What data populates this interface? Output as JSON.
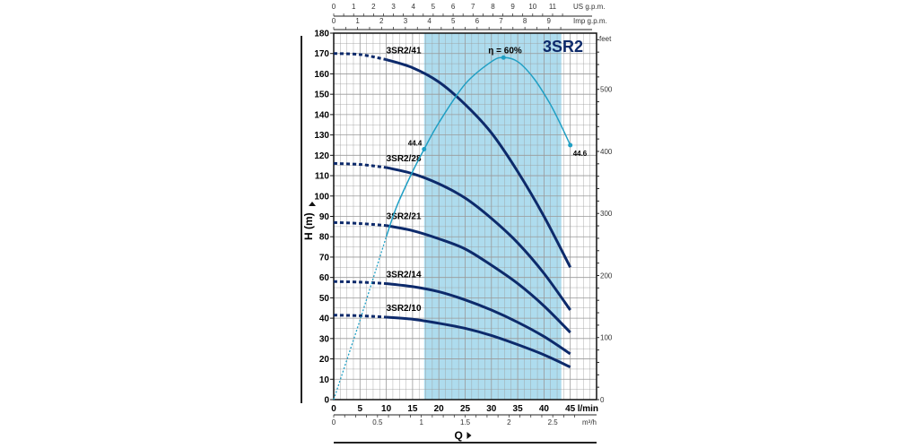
{
  "chart_data": {
    "type": "line",
    "title": "3SR2",
    "xlabel": "Q",
    "ylabel": "H (m)",
    "x_unit": "l/min",
    "xlim": [
      0,
      50
    ],
    "ylim": [
      0,
      180
    ],
    "x_ticks": [
      0,
      5,
      10,
      15,
      20,
      25,
      30,
      35,
      40,
      45
    ],
    "y_ticks": [
      0,
      10,
      20,
      30,
      40,
      50,
      60,
      70,
      80,
      90,
      100,
      110,
      120,
      130,
      140,
      150,
      160,
      170,
      180
    ],
    "secondary_axes": {
      "right": {
        "label": "feet",
        "ticks": [
          0,
          100,
          200,
          300,
          400,
          500
        ]
      },
      "top_us": {
        "label": "US g.p.m.",
        "ticks": [
          0,
          1,
          2,
          3,
          4,
          5,
          6,
          7,
          8,
          9,
          10,
          11
        ]
      },
      "top_imp": {
        "label": "Imp g.p.m.",
        "ticks": [
          0,
          1,
          2,
          3,
          4,
          5,
          6,
          7,
          8,
          9
        ]
      },
      "bottom_m3h": {
        "label": "m³/h",
        "ticks": [
          0,
          0.5,
          1,
          1.5,
          2,
          2.5
        ]
      }
    },
    "recommended_range": [
      17.2,
      43.3
    ],
    "grid": true,
    "colors": {
      "curves": "#0d2a6b",
      "efficiency": "#1f9fc4",
      "band": "#aedcee",
      "grid": "#999999"
    },
    "series": [
      {
        "name": "3SR2/41",
        "dashed_until": 10,
        "points": [
          [
            0,
            170
          ],
          [
            5,
            169.5
          ],
          [
            10,
            167
          ],
          [
            15,
            163
          ],
          [
            20,
            156
          ],
          [
            25,
            145
          ],
          [
            30,
            131
          ],
          [
            35,
            112
          ],
          [
            40,
            90
          ],
          [
            45,
            65
          ]
        ]
      },
      {
        "name": "3SR2/28",
        "dashed_until": 10,
        "points": [
          [
            0,
            116
          ],
          [
            5,
            115.5
          ],
          [
            10,
            114
          ],
          [
            15,
            111
          ],
          [
            20,
            106
          ],
          [
            25,
            99
          ],
          [
            30,
            89
          ],
          [
            35,
            77
          ],
          [
            40,
            62
          ],
          [
            45,
            44
          ]
        ]
      },
      {
        "name": "3SR2/21",
        "dashed_until": 10,
        "points": [
          [
            0,
            87
          ],
          [
            5,
            86.5
          ],
          [
            10,
            85.5
          ],
          [
            15,
            83
          ],
          [
            20,
            79
          ],
          [
            25,
            74
          ],
          [
            30,
            66
          ],
          [
            35,
            57
          ],
          [
            40,
            46
          ],
          [
            45,
            33
          ]
        ]
      },
      {
        "name": "3SR2/14",
        "dashed_until": 10,
        "points": [
          [
            0,
            58
          ],
          [
            5,
            57.7
          ],
          [
            10,
            57
          ],
          [
            15,
            55.5
          ],
          [
            20,
            53
          ],
          [
            25,
            49
          ],
          [
            30,
            44
          ],
          [
            35,
            38
          ],
          [
            40,
            31
          ],
          [
            45,
            22.5
          ]
        ]
      },
      {
        "name": "3SR2/10",
        "dashed_until": 10,
        "points": [
          [
            0,
            41.5
          ],
          [
            5,
            41.2
          ],
          [
            10,
            40.5
          ],
          [
            15,
            39.5
          ],
          [
            20,
            37.5
          ],
          [
            25,
            35
          ],
          [
            30,
            31.5
          ],
          [
            35,
            27
          ],
          [
            40,
            22
          ],
          [
            45,
            16
          ]
        ]
      }
    ],
    "efficiency": {
      "label": "η = 60%",
      "dashed_until": 10,
      "points": [
        [
          0,
          0
        ],
        [
          5,
          39
        ],
        [
          10,
          80
        ],
        [
          12,
          95
        ],
        [
          15,
          112
        ],
        [
          17.2,
          123
        ],
        [
          20,
          136
        ],
        [
          25,
          155
        ],
        [
          30,
          166
        ],
        [
          32.3,
          168
        ],
        [
          35,
          166
        ],
        [
          38,
          158
        ],
        [
          41,
          146
        ],
        [
          43,
          136
        ],
        [
          45,
          125
        ]
      ],
      "markers": [
        {
          "q": 17.2,
          "h": 123,
          "label": "44.4"
        },
        {
          "q": 32.3,
          "h": 168,
          "label": ""
        },
        {
          "q": 45,
          "h": 125,
          "label": "44.6"
        }
      ]
    }
  }
}
